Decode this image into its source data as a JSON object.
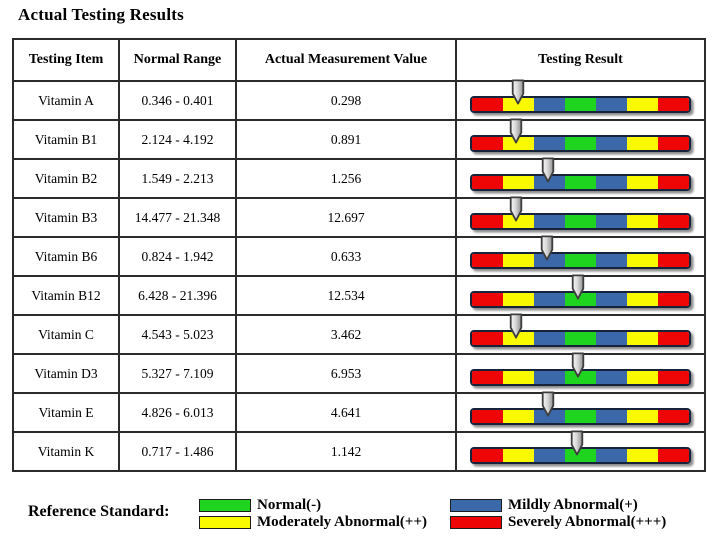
{
  "title": "Actual Testing Results",
  "palette": {
    "green": "#1fd41f",
    "blue": "#3a68a8",
    "yellow": "#f9f900",
    "red": "#ee0505"
  },
  "result_bar": {
    "segment_colors": [
      "red",
      "yellow",
      "blue",
      "green",
      "blue",
      "yellow",
      "red"
    ]
  },
  "table": {
    "headers": [
      "Testing Item",
      "Normal Range",
      "Actual Measurement Value",
      "Testing Result"
    ],
    "rows": [
      {
        "item": "Vitamin A",
        "normal_range": "0.346 - 0.401",
        "value": "0.298",
        "arrow_pos_pct": 21.5,
        "result_level": "Moderately Abnormal(++)"
      },
      {
        "item": "Vitamin B1",
        "normal_range": "2.124 - 4.192",
        "value": "0.891",
        "arrow_pos_pct": 21.0,
        "result_level": "Moderately Abnormal(++)"
      },
      {
        "item": "Vitamin B2",
        "normal_range": "1.549 - 2.213",
        "value": "1.256",
        "arrow_pos_pct": 35.5,
        "result_level": "Mildly Abnormal(+)"
      },
      {
        "item": "Vitamin B3",
        "normal_range": "14.477 - 21.348",
        "value": "12.697",
        "arrow_pos_pct": 21.0,
        "result_level": "Moderately Abnormal(++)"
      },
      {
        "item": "Vitamin B6",
        "normal_range": "0.824 - 1.942",
        "value": "0.633",
        "arrow_pos_pct": 35.0,
        "result_level": "Mildly Abnormal(+)"
      },
      {
        "item": "Vitamin B12",
        "normal_range": "6.428 - 21.396",
        "value": "12.534",
        "arrow_pos_pct": 49.0,
        "result_level": "Normal(-)"
      },
      {
        "item": "Vitamin C",
        "normal_range": "4.543 - 5.023",
        "value": "3.462",
        "arrow_pos_pct": 21.0,
        "result_level": "Moderately Abnormal(++)"
      },
      {
        "item": "Vitamin D3",
        "normal_range": "5.327 - 7.109",
        "value": "6.953",
        "arrow_pos_pct": 49.0,
        "result_level": "Normal(-)"
      },
      {
        "item": "Vitamin E",
        "normal_range": "4.826 - 6.013",
        "value": "4.641",
        "arrow_pos_pct": 35.5,
        "result_level": "Mildly Abnormal(+)"
      },
      {
        "item": "Vitamin K",
        "normal_range": "0.717 - 1.486",
        "value": "1.142",
        "arrow_pos_pct": 48.5,
        "result_level": "Normal(-)"
      }
    ]
  },
  "legend": {
    "label": "Reference Standard:",
    "items": [
      {
        "color": "green",
        "text": "Normal(-)"
      },
      {
        "color": "blue",
        "text": "Mildly Abnormal(+)"
      },
      {
        "color": "yellow",
        "text": "Moderately Abnormal(++)"
      },
      {
        "color": "red",
        "text": "Severely Abnormal(+++)"
      }
    ]
  }
}
